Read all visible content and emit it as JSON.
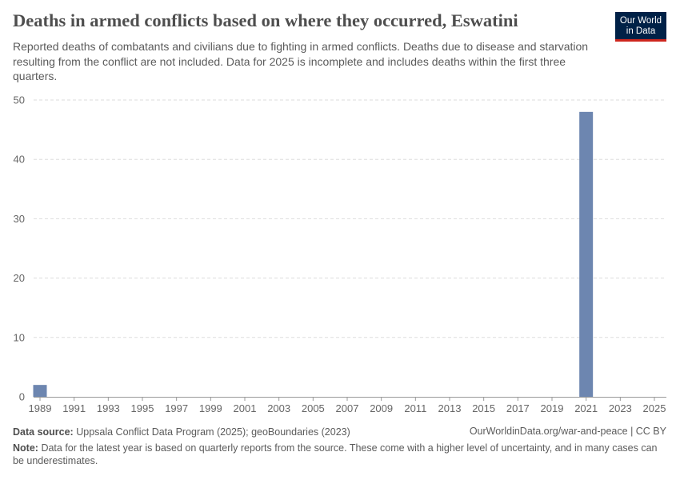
{
  "header": {
    "title": "Deaths in armed conflicts based on where they occurred, Eswatini",
    "subtitle": "Reported deaths of combatants and civilians due to fighting in armed conflicts. Deaths due to disease and starvation resulting from the conflict are not included. Data for 2025 is incomplete and includes deaths within the first three quarters.",
    "logo_line1": "Our World",
    "logo_line2": "in Data"
  },
  "colors": {
    "bar": "#6d86b0",
    "grid": "#dddddd",
    "logo_bg": "#002147",
    "logo_accent": "#ce261e"
  },
  "chart_data": {
    "type": "bar",
    "title": "Deaths in armed conflicts based on where they occurred, Eswatini",
    "xlabel": "",
    "ylabel": "",
    "ylim": [
      0,
      50
    ],
    "yticks": [
      0,
      10,
      20,
      30,
      40,
      50
    ],
    "xlim": [
      1989,
      2025
    ],
    "xticks": [
      1989,
      1991,
      1993,
      1995,
      1997,
      1999,
      2001,
      2003,
      2005,
      2007,
      2009,
      2011,
      2013,
      2015,
      2017,
      2019,
      2021,
      2023,
      2025
    ],
    "grid": true,
    "series": [
      {
        "name": "Eswatini",
        "points": [
          {
            "x": 1989,
            "y": 2
          },
          {
            "x": 2021,
            "y": 48
          }
        ]
      }
    ]
  },
  "footer": {
    "source_label": "Data source:",
    "source_text": "Uppsala Conflict Data Program (2025); geoBoundaries (2023)",
    "credit": "OurWorldinData.org/war-and-peace | CC BY",
    "note_label": "Note:",
    "note_text": "Data for the latest year is based on quarterly reports from the source. These come with a higher level of uncertainty, and in many cases can be underestimates."
  }
}
